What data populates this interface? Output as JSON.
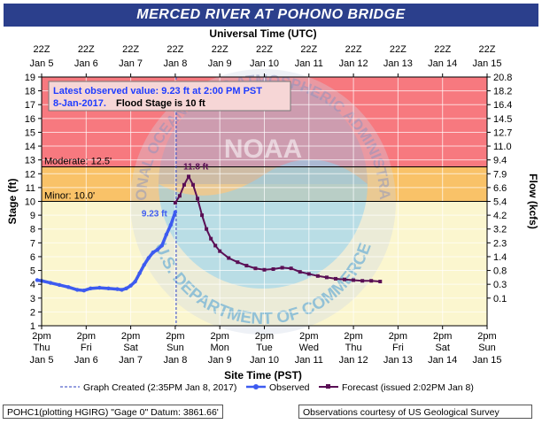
{
  "title": "MERCED RIVER AT POHONO BRIDGE",
  "top_axis_title": "Universal Time (UTC)",
  "bottom_axis_title": "Site Time (PST)",
  "colors": {
    "title_bg": "#2b3f8c",
    "major_band": "#f7797f",
    "moderate_band": "#f9c268",
    "minor_band": "#fbf6cf",
    "observed": "#3d5bf0",
    "forecast": "#5a0f55"
  },
  "info_box": {
    "line1": "Latest observed value: 9.23 ft at 2:00 PM PST",
    "line2_date": "8-Jan-2017.",
    "line2_flood": "Flood Stage is 10 ft"
  },
  "footer": {
    "left": "POHC1(plotting HGIRG) \"Gage 0\" Datum: 3861.66'",
    "right": "Observations courtesy of US Geological Survey"
  },
  "watermark": {
    "top_text": "NATIONAL OCEANIC AND ATMOSPHERIC ADMINISTRATION",
    "bottom_text": "U.S. DEPARTMENT OF COMMERCE",
    "center_text": "NOAA"
  },
  "chart_data": {
    "type": "line",
    "ylabel": "Stage (ft)",
    "y2label": "Flow (kcfs)",
    "ylim": [
      1,
      19
    ],
    "y_ticks": [
      "1",
      "2",
      "3",
      "4",
      "5",
      "6",
      "7",
      "8",
      "9",
      "10",
      "11",
      "12",
      "13",
      "14",
      "15",
      "16",
      "17",
      "18",
      "19"
    ],
    "y2_ticks": [
      {
        "stage": 19,
        "label": "20.8"
      },
      {
        "stage": 18,
        "label": "18.2"
      },
      {
        "stage": 17,
        "label": "16.4"
      },
      {
        "stage": 16,
        "label": "14.5"
      },
      {
        "stage": 15,
        "label": "12.7"
      },
      {
        "stage": 14,
        "label": "11.0"
      },
      {
        "stage": 13,
        "label": "9.4"
      },
      {
        "stage": 12,
        "label": "7.9"
      },
      {
        "stage": 11,
        "label": "6.6"
      },
      {
        "stage": 10,
        "label": "5.4"
      },
      {
        "stage": 9,
        "label": "4.2"
      },
      {
        "stage": 8,
        "label": "3.2"
      },
      {
        "stage": 7,
        "label": "2.3"
      },
      {
        "stage": 6,
        "label": "1.4"
      },
      {
        "stage": 5,
        "label": "0.8"
      },
      {
        "stage": 4,
        "label": "0.3"
      },
      {
        "stage": 3,
        "label": "0.1"
      }
    ],
    "x_ticks_top": [
      {
        "t": "22Z",
        "d": "Jan 5"
      },
      {
        "t": "22Z",
        "d": "Jan 6"
      },
      {
        "t": "22Z",
        "d": "Jan 7"
      },
      {
        "t": "22Z",
        "d": "Jan 8"
      },
      {
        "t": "22Z",
        "d": "Jan 9"
      },
      {
        "t": "22Z",
        "d": "Jan 10"
      },
      {
        "t": "22Z",
        "d": "Jan 11"
      },
      {
        "t": "22Z",
        "d": "Jan 12"
      },
      {
        "t": "22Z",
        "d": "Jan 13"
      },
      {
        "t": "22Z",
        "d": "Jan 14"
      },
      {
        "t": "22Z",
        "d": "Jan 15"
      }
    ],
    "x_ticks_bottom": [
      {
        "t": "2pm",
        "w": "Thu",
        "d": "Jan 5"
      },
      {
        "t": "2pm",
        "w": "Fri",
        "d": "Jan 6"
      },
      {
        "t": "2pm",
        "w": "Sat",
        "d": "Jan 7"
      },
      {
        "t": "2pm",
        "w": "Sun",
        "d": "Jan 8"
      },
      {
        "t": "2pm",
        "w": "Mon",
        "d": "Jan 9"
      },
      {
        "t": "2pm",
        "w": "Tue",
        "d": "Jan 10"
      },
      {
        "t": "2pm",
        "w": "Wed",
        "d": "Jan 11"
      },
      {
        "t": "2pm",
        "w": "Thu",
        "d": "Jan 12"
      },
      {
        "t": "2pm",
        "w": "Fri",
        "d": "Jan 13"
      },
      {
        "t": "2pm",
        "w": "Sat",
        "d": "Jan 14"
      },
      {
        "t": "2pm",
        "w": "Sun",
        "d": "Jan 15"
      }
    ],
    "flood_categories": [
      {
        "name": "Moderate",
        "label": "Moderate: 12.5'",
        "stage": 12.5
      },
      {
        "name": "Minor",
        "label": "Minor: 10.0'",
        "stage": 10.0
      }
    ],
    "legend": {
      "created": "Graph Created (2:35PM Jan 8, 2017)",
      "observed": "Observed",
      "forecast": "Forecast (issued 2:02PM Jan 8)"
    },
    "series": [
      {
        "name": "Observed",
        "points": [
          [
            -0.1,
            4.3
          ],
          [
            0.0,
            4.25
          ],
          [
            0.2,
            4.1
          ],
          [
            0.4,
            3.95
          ],
          [
            0.6,
            3.8
          ],
          [
            0.8,
            3.6
          ],
          [
            0.95,
            3.55
          ],
          [
            1.1,
            3.7
          ],
          [
            1.3,
            3.75
          ],
          [
            1.5,
            3.7
          ],
          [
            1.7,
            3.65
          ],
          [
            1.8,
            3.6
          ],
          [
            1.9,
            3.7
          ],
          [
            2.0,
            3.9
          ],
          [
            2.1,
            4.2
          ],
          [
            2.2,
            4.8
          ],
          [
            2.3,
            5.4
          ],
          [
            2.4,
            5.9
          ],
          [
            2.5,
            6.3
          ],
          [
            2.6,
            6.5
          ],
          [
            2.7,
            6.8
          ],
          [
            2.8,
            7.6
          ],
          [
            2.9,
            8.3
          ],
          [
            3.0,
            9.23
          ]
        ]
      },
      {
        "name": "Forecast",
        "points": [
          [
            3.0,
            9.9
          ],
          [
            3.1,
            10.4
          ],
          [
            3.2,
            11.2
          ],
          [
            3.3,
            11.8
          ],
          [
            3.4,
            11.2
          ],
          [
            3.5,
            10.2
          ],
          [
            3.6,
            9.0
          ],
          [
            3.7,
            8.0
          ],
          [
            3.8,
            7.3
          ],
          [
            3.9,
            6.8
          ],
          [
            4.0,
            6.4
          ],
          [
            4.2,
            5.9
          ],
          [
            4.4,
            5.6
          ],
          [
            4.6,
            5.35
          ],
          [
            4.8,
            5.15
          ],
          [
            5.0,
            5.05
          ],
          [
            5.2,
            5.1
          ],
          [
            5.4,
            5.2
          ],
          [
            5.6,
            5.15
          ],
          [
            5.8,
            4.9
          ],
          [
            6.0,
            4.75
          ],
          [
            6.2,
            4.6
          ],
          [
            6.4,
            4.5
          ],
          [
            6.6,
            4.4
          ],
          [
            6.8,
            4.35
          ],
          [
            7.0,
            4.3
          ],
          [
            7.2,
            4.25
          ],
          [
            7.4,
            4.25
          ],
          [
            7.6,
            4.2
          ]
        ]
      }
    ],
    "annotations": [
      {
        "label": "9.23 ft",
        "x": 3.0,
        "y": 9.23
      },
      {
        "label": "11.8 ft",
        "x": 3.3,
        "y": 11.8
      }
    ],
    "graph_created_x": 3.02
  }
}
